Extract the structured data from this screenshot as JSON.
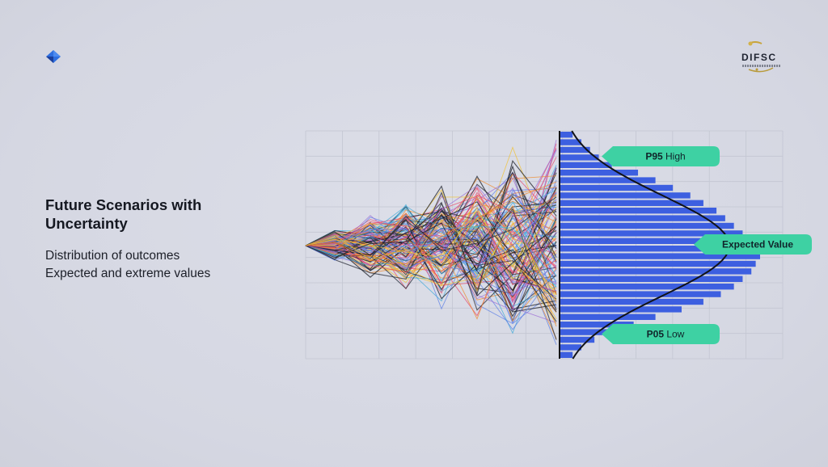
{
  "slide": {
    "title": "Future Scenarios with Uncertainty",
    "subtitle_lines": [
      "Distribution of outcomes",
      "Expected and extreme values"
    ]
  },
  "logo": {
    "text": "DIFSC"
  },
  "brand_icon": {
    "name": "chevron-mark-icon",
    "color": "#2f6fe0"
  },
  "colors": {
    "accent_callout": "#3ed1a3",
    "histogram_bar": "#3d5fe0",
    "grid": "#c3c6d2"
  },
  "chart_data": {
    "type": "bar",
    "orientation": "horizontal",
    "description_bins_top_to_bottom": true,
    "values": [
      3,
      5,
      7,
      9,
      12,
      18,
      22,
      26,
      30,
      33,
      36,
      38,
      40,
      42,
      44,
      45,
      46,
      45,
      44,
      42,
      40,
      37,
      33,
      28,
      22,
      17,
      12,
      8,
      5,
      3
    ],
    "fan_paths": {
      "count": 140,
      "shape": "fan widening to the right",
      "colors": [
        "#1b1d26",
        "#e8456a",
        "#f08a2a",
        "#f2c230",
        "#5b7fe6",
        "#9b6bd6",
        "#3fa9d8",
        "#2c2f3b"
      ]
    },
    "grid": true,
    "annotations": [
      {
        "label_bold": "P95",
        "label_rest": "High"
      },
      {
        "label_bold": "Expected Value",
        "label_rest": ""
      },
      {
        "label_bold": "P05",
        "label_rest": "Low"
      }
    ]
  }
}
